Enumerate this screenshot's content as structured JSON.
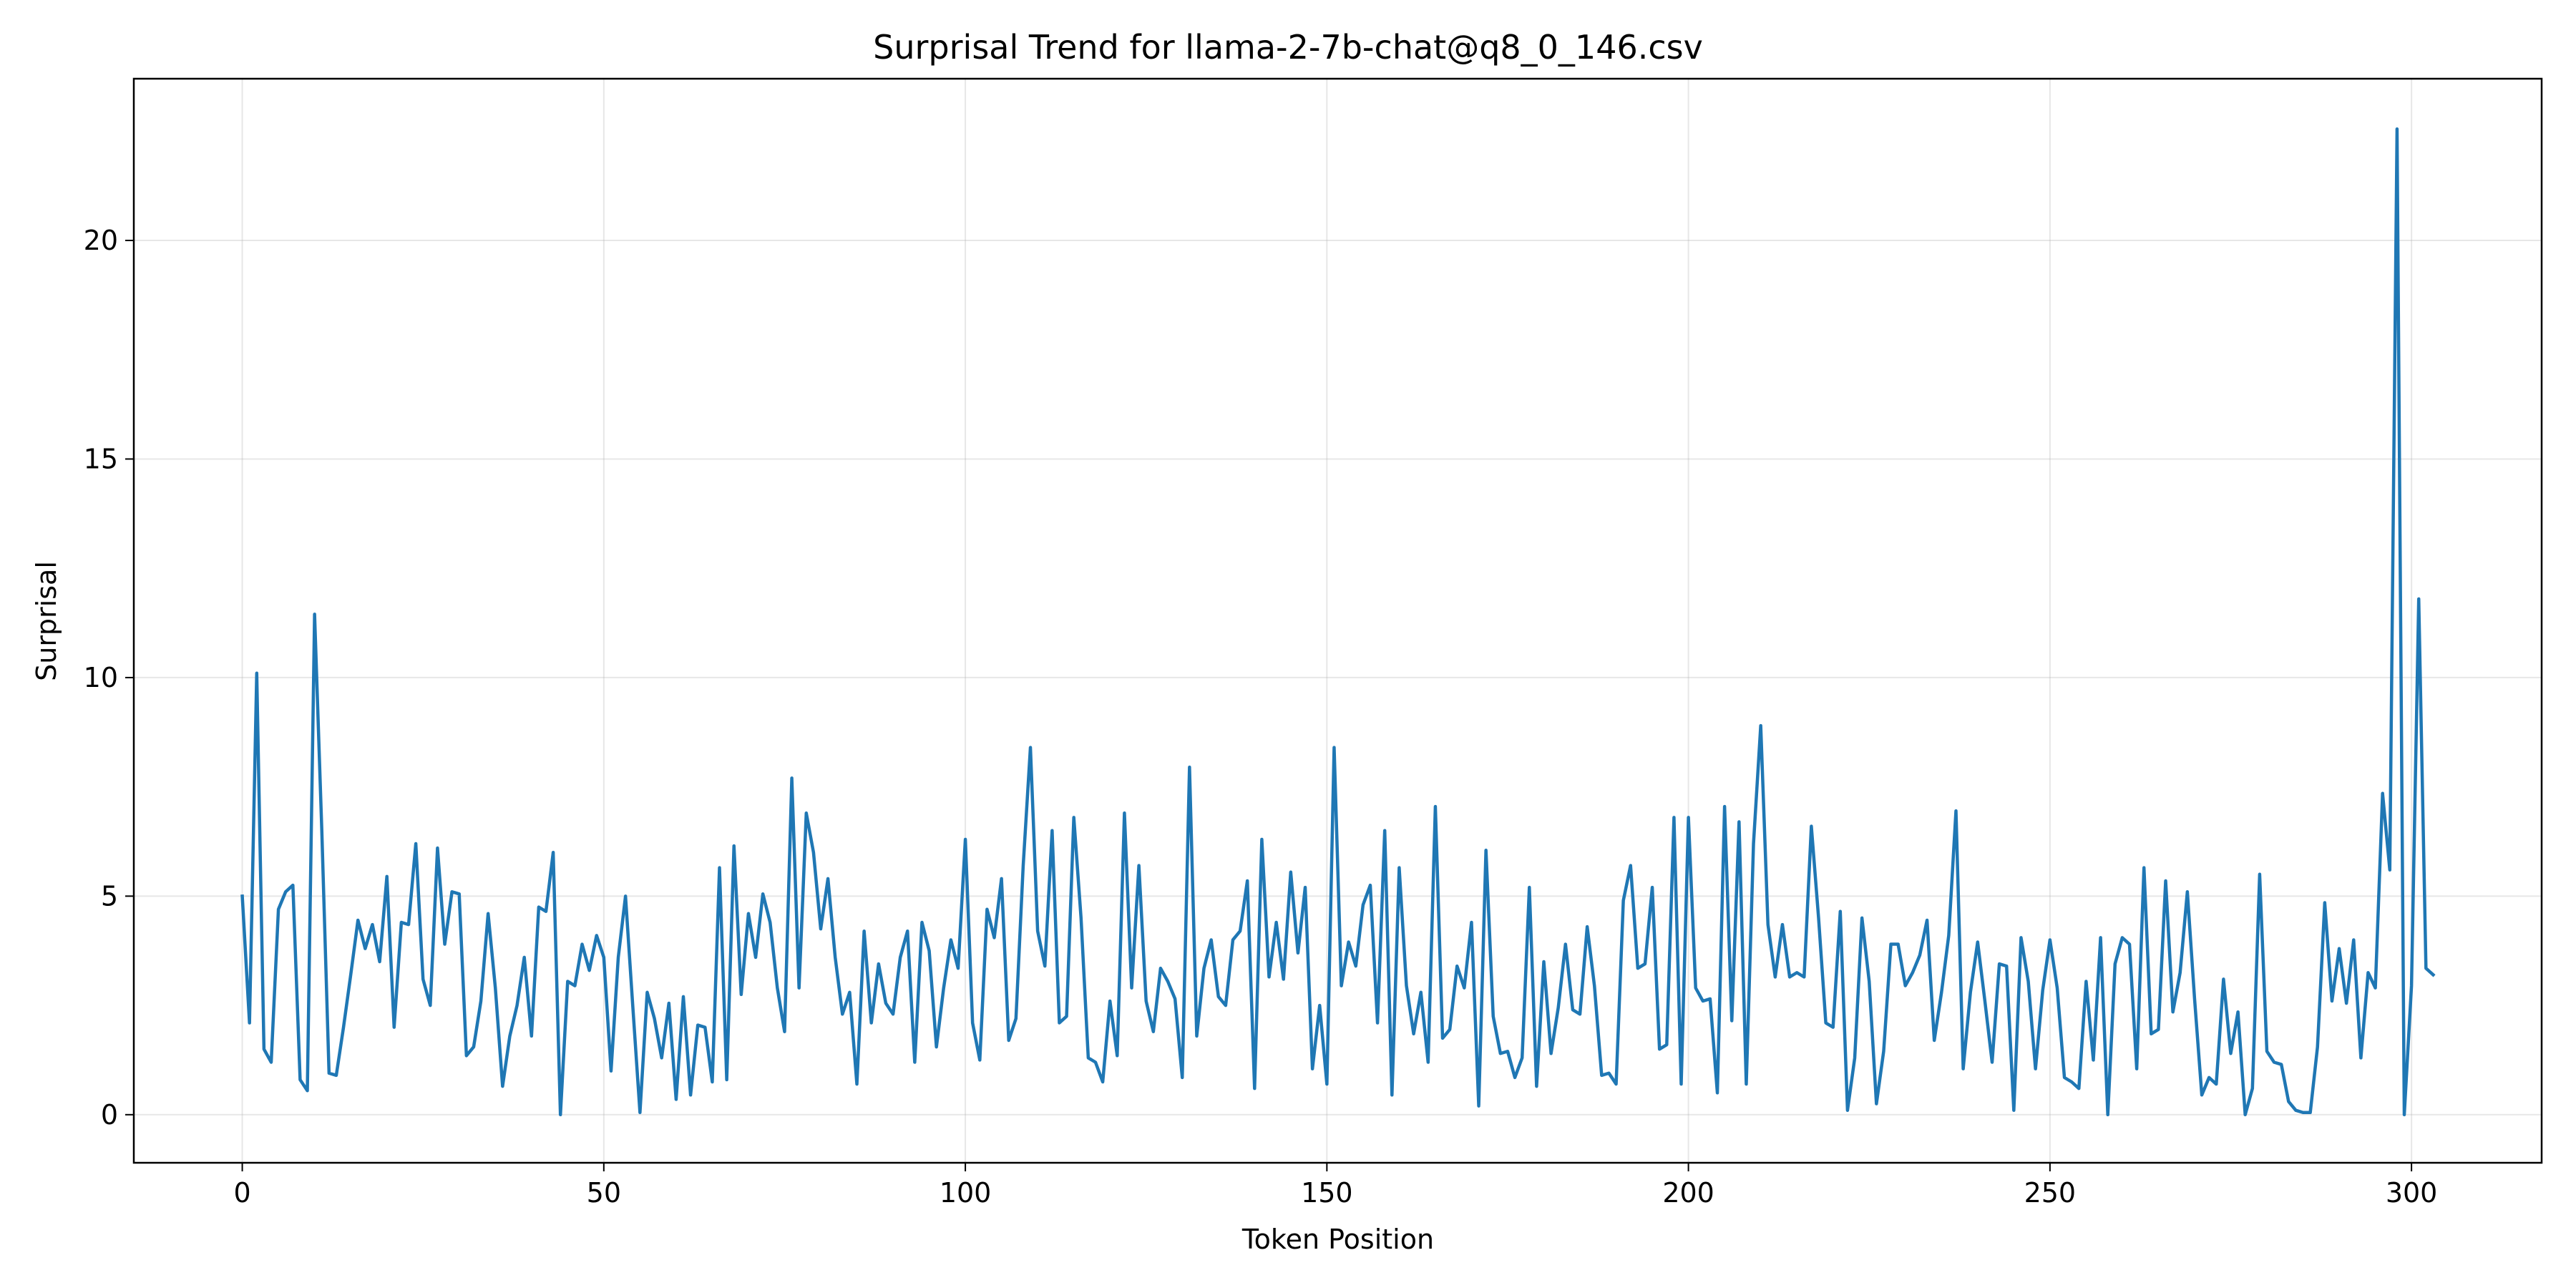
{
  "chart_data": {
    "type": "line",
    "title": "Surprisal Trend for llama-2-7b-chat@q8_0_146.csv",
    "xlabel": "Token Position",
    "ylabel": "Surprisal",
    "xlim": [
      -15,
      318
    ],
    "ylim": [
      -1.1,
      23.7
    ],
    "xticks": [
      0,
      50,
      100,
      150,
      200,
      250,
      300
    ],
    "yticks": [
      0,
      5,
      10,
      15,
      20
    ],
    "grid": true,
    "legend": "none",
    "series": [
      {
        "color": "#1f77b4",
        "x_start": 0,
        "x_step": 1,
        "values": [
          5.0,
          2.1,
          10.1,
          1.5,
          1.2,
          4.7,
          5.1,
          5.25,
          0.8,
          0.55,
          11.45,
          6.5,
          0.95,
          0.9,
          2.0,
          3.2,
          4.45,
          3.8,
          4.35,
          3.5,
          5.45,
          2.0,
          4.4,
          4.35,
          6.2,
          3.1,
          2.5,
          6.1,
          3.9,
          5.1,
          5.05,
          1.35,
          1.55,
          2.6,
          4.6,
          2.9,
          0.65,
          1.8,
          2.5,
          3.6,
          1.8,
          4.75,
          4.65,
          6.0,
          0.0,
          3.05,
          2.95,
          3.9,
          3.3,
          4.1,
          3.6,
          1.0,
          3.6,
          5.0,
          2.5,
          0.05,
          2.8,
          2.2,
          1.3,
          2.55,
          0.35,
          2.7,
          0.45,
          2.05,
          2.0,
          0.75,
          5.65,
          0.8,
          6.15,
          2.75,
          4.6,
          3.6,
          5.05,
          4.4,
          2.9,
          1.9,
          7.7,
          2.9,
          6.9,
          6.0,
          4.25,
          5.4,
          3.6,
          2.3,
          2.8,
          0.7,
          4.2,
          2.1,
          3.45,
          2.55,
          2.3,
          3.6,
          4.2,
          1.2,
          4.4,
          3.75,
          1.55,
          2.9,
          4.0,
          3.35,
          6.3,
          2.1,
          1.25,
          4.7,
          4.05,
          5.4,
          1.7,
          2.2,
          5.7,
          8.4,
          4.2,
          3.4,
          6.5,
          2.1,
          2.25,
          6.8,
          4.5,
          1.3,
          1.2,
          0.75,
          2.6,
          1.35,
          6.9,
          2.9,
          5.7,
          2.6,
          1.9,
          3.35,
          3.05,
          2.65,
          0.85,
          7.95,
          1.8,
          3.35,
          4.0,
          2.7,
          2.5,
          4.0,
          4.2,
          5.35,
          0.6,
          6.3,
          3.15,
          4.4,
          3.1,
          5.55,
          3.7,
          5.2,
          1.05,
          2.5,
          0.7,
          8.4,
          2.95,
          3.95,
          3.4,
          4.8,
          5.25,
          2.1,
          6.5,
          0.45,
          5.65,
          2.95,
          1.85,
          2.8,
          1.2,
          7.05,
          1.75,
          1.95,
          3.4,
          2.9,
          4.4,
          0.2,
          6.05,
          2.25,
          1.4,
          1.45,
          0.85,
          1.3,
          5.2,
          0.65,
          3.5,
          1.4,
          2.45,
          3.9,
          2.4,
          2.3,
          4.3,
          2.95,
          0.9,
          0.95,
          0.7,
          4.9,
          5.7,
          3.35,
          3.45,
          5.2,
          1.5,
          1.6,
          6.8,
          0.7,
          6.8,
          2.9,
          2.6,
          2.65,
          0.5,
          7.05,
          2.15,
          6.7,
          0.7,
          6.2,
          8.9,
          4.35,
          3.15,
          4.35,
          3.15,
          3.25,
          3.15,
          6.6,
          4.5,
          2.1,
          2.0,
          4.65,
          0.1,
          1.3,
          4.5,
          3.05,
          0.25,
          1.45,
          3.9,
          3.9,
          2.95,
          3.25,
          3.65,
          4.45,
          1.7,
          2.8,
          4.1,
          6.95,
          1.05,
          2.8,
          3.95,
          2.6,
          1.2,
          3.45,
          3.4,
          0.1,
          4.05,
          3.05,
          1.05,
          2.85,
          4.0,
          2.9,
          0.85,
          0.75,
          0.6,
          3.05,
          1.25,
          4.05,
          0.0,
          3.45,
          4.05,
          3.9,
          1.05,
          5.65,
          1.85,
          1.95,
          5.35,
          2.35,
          3.25,
          5.1,
          2.65,
          0.45,
          0.85,
          0.7,
          3.1,
          1.4,
          2.35,
          0.0,
          0.6,
          5.5,
          1.45,
          1.2,
          1.15,
          0.3,
          0.1,
          0.05,
          0.05,
          1.55,
          4.85,
          2.6,
          3.8,
          2.55,
          4.0,
          1.3,
          3.25,
          2.9,
          7.35,
          5.6,
          22.55,
          0.0,
          2.95,
          11.8,
          3.35,
          3.2
        ]
      }
    ]
  }
}
